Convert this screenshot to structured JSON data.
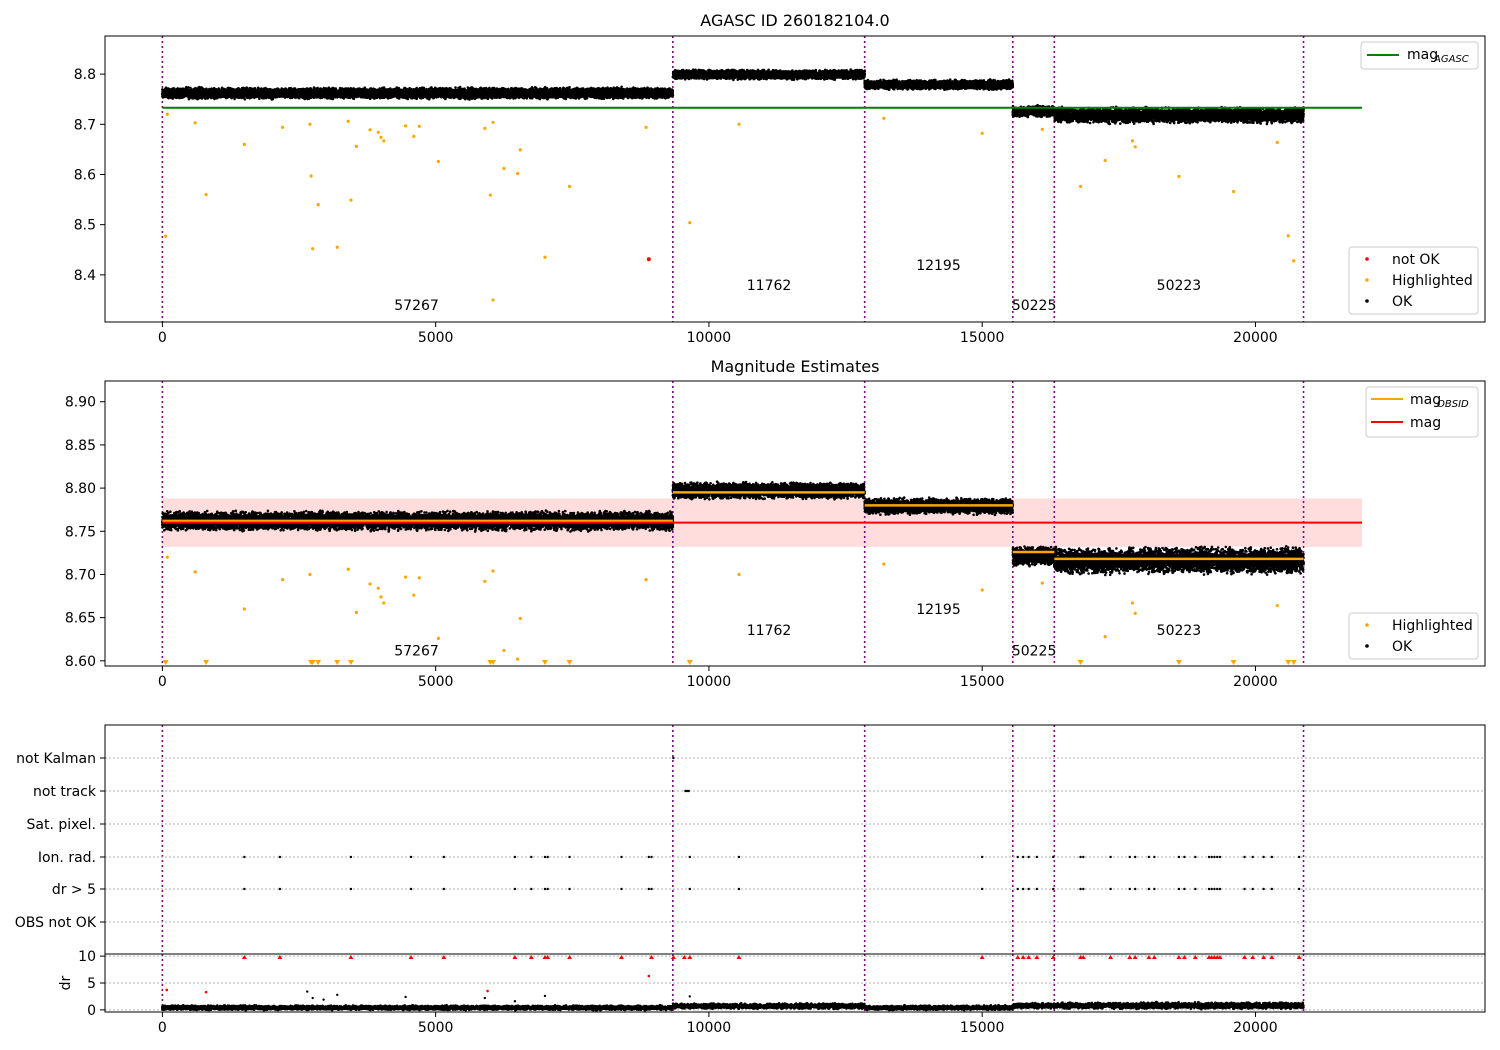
{
  "chart_data": [
    {
      "id": "top",
      "type": "scatter",
      "title": "AGASC ID 260182104.0",
      "xlim": [
        -1050,
        24200
      ],
      "ylim": [
        8.306,
        8.876
      ],
      "xticks": [
        0,
        5000,
        10000,
        15000,
        20000
      ],
      "xtick_labels": [
        "0",
        "5000",
        "10000",
        "15000",
        "20000"
      ],
      "yticks": [
        8.4,
        8.5,
        8.6,
        8.7,
        8.8
      ],
      "ytick_labels": [
        "8.4",
        "8.5",
        "8.6",
        "8.7",
        "8.8"
      ],
      "vlines": [
        0,
        9340,
        12850,
        15560,
        16320,
        20880
      ],
      "obsids": [
        {
          "label": "57267",
          "x": 4650,
          "y": 8.33
        },
        {
          "label": "11762",
          "x": 11100,
          "y": 8.37
        },
        {
          "label": "12195",
          "x": 14200,
          "y": 8.41
        },
        {
          "label": "50225",
          "x": 15950,
          "y": 8.33
        },
        {
          "label": "50223",
          "x": 18600,
          "y": 8.37
        }
      ],
      "hline": {
        "name": "mag_AGASC",
        "y": 8.733,
        "xrange": [
          0,
          21950
        ],
        "color": "#008000"
      },
      "bands": [
        {
          "x": [
            0,
            9340
          ],
          "center": 8.762,
          "spread": 0.013
        },
        {
          "x": [
            9340,
            12850
          ],
          "center": 8.799,
          "spread": 0.011
        },
        {
          "x": [
            12850,
            15560
          ],
          "center": 8.779,
          "spread": 0.011
        },
        {
          "x": [
            15560,
            16320
          ],
          "center": 8.726,
          "spread": 0.013
        },
        {
          "x": [
            16320,
            20880
          ],
          "center": 8.718,
          "spread": 0.018
        }
      ],
      "highlighted": [
        [
          60,
          8.477
        ],
        [
          90,
          8.72
        ],
        [
          600,
          8.703
        ],
        [
          800,
          8.56
        ],
        [
          1500,
          8.66
        ],
        [
          2200,
          8.694
        ],
        [
          2700,
          8.7
        ],
        [
          2720,
          8.597
        ],
        [
          2750,
          8.452
        ],
        [
          2850,
          8.54
        ],
        [
          3200,
          8.455
        ],
        [
          3400,
          8.706
        ],
        [
          3450,
          8.549
        ],
        [
          3550,
          8.656
        ],
        [
          3800,
          8.689
        ],
        [
          3950,
          8.684
        ],
        [
          4000,
          8.674
        ],
        [
          4050,
          8.667
        ],
        [
          4450,
          8.697
        ],
        [
          4600,
          8.676
        ],
        [
          4700,
          8.696
        ],
        [
          5050,
          8.626
        ],
        [
          5900,
          8.692
        ],
        [
          6000,
          8.559
        ],
        [
          6050,
          8.704
        ],
        [
          6050,
          8.35
        ],
        [
          6250,
          8.612
        ],
        [
          6500,
          8.602
        ],
        [
          6550,
          8.649
        ],
        [
          7000,
          8.435
        ],
        [
          7450,
          8.576
        ],
        [
          8850,
          8.694
        ],
        [
          9650,
          8.504
        ],
        [
          10550,
          8.7
        ],
        [
          13200,
          8.712
        ],
        [
          15000,
          8.682
        ],
        [
          16100,
          8.69
        ],
        [
          16800,
          8.576
        ],
        [
          17250,
          8.628
        ],
        [
          17750,
          8.667
        ],
        [
          17800,
          8.655
        ],
        [
          18600,
          8.596
        ],
        [
          19600,
          8.566
        ],
        [
          20400,
          8.664
        ],
        [
          20600,
          8.478
        ],
        [
          20700,
          8.428
        ]
      ],
      "not_ok": [
        [
          8900,
          8.431
        ]
      ],
      "legend_line": "mag",
      "legend_line_sub": "AGASC",
      "legend_points": [
        "not OK",
        "Highlighted",
        "OK"
      ]
    },
    {
      "id": "mid",
      "type": "scatter",
      "title": "Magnitude Estimates",
      "xlim": [
        -1050,
        24200
      ],
      "ylim": [
        8.594,
        8.924
      ],
      "xticks": [
        0,
        5000,
        10000,
        15000,
        20000
      ],
      "xtick_labels": [
        "0",
        "5000",
        "10000",
        "15000",
        "20000"
      ],
      "yticks": [
        8.6,
        8.65,
        8.7,
        8.75,
        8.8,
        8.85,
        8.9
      ],
      "ytick_labels": [
        "8.60",
        "8.65",
        "8.70",
        "8.75",
        "8.80",
        "8.85",
        "8.90"
      ],
      "vlines": [
        0,
        9340,
        12850,
        15560,
        16320,
        20880
      ],
      "obsids": [
        {
          "label": "57267",
          "x": 4650,
          "y": 8.606
        },
        {
          "label": "11762",
          "x": 11100,
          "y": 8.63
        },
        {
          "label": "12195",
          "x": 14200,
          "y": 8.654
        },
        {
          "label": "50225",
          "x": 15950,
          "y": 8.606
        },
        {
          "label": "50223",
          "x": 18600,
          "y": 8.63
        }
      ],
      "mag": {
        "y": 8.76,
        "band": [
          8.732,
          8.788
        ],
        "xrange": [
          0,
          21950
        ]
      },
      "mag_obsid": [
        {
          "x": [
            0,
            9340
          ],
          "y": 8.762
        },
        {
          "x": [
            9340,
            12850
          ],
          "y": 8.795
        },
        {
          "x": [
            12850,
            15560
          ],
          "y": 8.78
        },
        {
          "x": [
            15560,
            16320
          ],
          "y": 8.726
        },
        {
          "x": [
            16320,
            20880
          ],
          "y": 8.718
        }
      ],
      "bands": [
        {
          "x": [
            0,
            9340
          ],
          "center": 8.762,
          "spread": 0.013
        },
        {
          "x": [
            9340,
            12850
          ],
          "center": 8.797,
          "spread": 0.011
        },
        {
          "x": [
            12850,
            15560
          ],
          "center": 8.779,
          "spread": 0.011
        },
        {
          "x": [
            15560,
            16320
          ],
          "center": 8.721,
          "spread": 0.013
        },
        {
          "x": [
            16320,
            20880
          ],
          "center": 8.716,
          "spread": 0.018
        }
      ],
      "highlighted": [
        [
          90,
          8.72
        ],
        [
          600,
          8.703
        ],
        [
          1500,
          8.66
        ],
        [
          2200,
          8.694
        ],
        [
          2700,
          8.7
        ],
        [
          3400,
          8.706
        ],
        [
          3550,
          8.656
        ],
        [
          3800,
          8.689
        ],
        [
          3950,
          8.684
        ],
        [
          4000,
          8.674
        ],
        [
          4050,
          8.667
        ],
        [
          4450,
          8.697
        ],
        [
          4600,
          8.676
        ],
        [
          4700,
          8.696
        ],
        [
          5050,
          8.626
        ],
        [
          5900,
          8.692
        ],
        [
          6050,
          8.704
        ],
        [
          6250,
          8.612
        ],
        [
          6500,
          8.602
        ],
        [
          6550,
          8.649
        ],
        [
          8850,
          8.694
        ],
        [
          10550,
          8.7
        ],
        [
          13200,
          8.712
        ],
        [
          15000,
          8.682
        ],
        [
          16100,
          8.69
        ],
        [
          17250,
          8.628
        ],
        [
          17750,
          8.667
        ],
        [
          17800,
          8.655
        ],
        [
          20400,
          8.664
        ]
      ],
      "clipped_x": [
        60,
        800,
        2720,
        2750,
        2850,
        3200,
        3450,
        6000,
        6050,
        7000,
        7450,
        9650,
        16800,
        18600,
        19600,
        20600,
        20700
      ],
      "legend_lines": [
        {
          "label": "mag",
          "sub": "OBSID",
          "color": "#ffa500"
        },
        {
          "label": "mag",
          "sub": "",
          "color": "#ff0000"
        }
      ],
      "legend_points": [
        "Highlighted",
        "OK"
      ]
    },
    {
      "id": "flags",
      "type": "scatter",
      "xlim": [
        -1050,
        24200
      ],
      "categories": [
        "not Kalman",
        "not track",
        "Sat. pixel.",
        "Ion. rad.",
        "dr > 5",
        "OBS not OK"
      ],
      "vlines": [
        0,
        9340,
        12850,
        15560,
        16320,
        20880
      ],
      "events_x": [
        1500,
        2150,
        3450,
        4550,
        5150,
        6450,
        6750,
        7000,
        7050,
        7450,
        8400,
        8900,
        8950,
        9650,
        10550,
        15000,
        15650,
        15750,
        15850,
        16000,
        16300,
        16800,
        16850,
        17350,
        17700,
        17800,
        18050,
        18150,
        18600,
        18700,
        18900,
        19150,
        19200,
        19250,
        19300,
        19350,
        19800,
        19950,
        20150,
        20300,
        20800
      ],
      "not_track_x": [
        9570,
        9600,
        9630
      ],
      "not_kalman_x": [
        9350
      ]
    },
    {
      "id": "dr",
      "type": "scatter",
      "ylabel": "dr",
      "xlim": [
        -1050,
        24200
      ],
      "ylim": [
        -0.4,
        10.4
      ],
      "yticks": [
        0,
        5,
        10
      ],
      "ytick_labels": [
        "0",
        "5",
        "10"
      ],
      "xticks": [
        0,
        5000,
        10000,
        15000,
        20000
      ],
      "xtick_labels": [
        "0",
        "5000",
        "10000",
        "15000",
        "20000"
      ],
      "vlines": [
        0,
        9340,
        12850,
        15560,
        16320,
        20880
      ],
      "clipped_x": [
        1500,
        2150,
        3450,
        4550,
        5150,
        6450,
        6750,
        7000,
        7050,
        7450,
        8400,
        8950,
        9350,
        9550,
        9650,
        10550,
        15000,
        15650,
        15750,
        15850,
        16000,
        16300,
        16800,
        16850,
        17350,
        17700,
        17800,
        18050,
        18150,
        18600,
        18700,
        18900,
        19150,
        19200,
        19250,
        19300,
        19350,
        19800,
        19950,
        20150,
        20300,
        20800
      ],
      "red_points": [
        [
          80,
          3.7
        ],
        [
          800,
          3.3
        ],
        [
          8900,
          6.3
        ],
        [
          5950,
          3.5
        ]
      ],
      "outliers": [
        [
          2650,
          3.4
        ],
        [
          2750,
          2.2
        ],
        [
          2950,
          1.9
        ],
        [
          3200,
          2.8
        ],
        [
          4450,
          2.4
        ],
        [
          5900,
          2.2
        ],
        [
          6450,
          1.6
        ],
        [
          7000,
          2.6
        ],
        [
          9650,
          2.5
        ]
      ],
      "bands": [
        {
          "x": [
            0,
            9340
          ],
          "center": 0.4,
          "spread": 0.5
        },
        {
          "x": [
            9340,
            12850
          ],
          "center": 0.7,
          "spread": 0.6
        },
        {
          "x": [
            12850,
            15560
          ],
          "center": 0.4,
          "spread": 0.5
        },
        {
          "x": [
            15560,
            16320
          ],
          "center": 0.8,
          "spread": 0.6
        },
        {
          "x": [
            16320,
            20880
          ],
          "center": 0.8,
          "spread": 0.7
        }
      ]
    }
  ],
  "colors": {
    "ok": "#000000",
    "highlighted": "#ffa500",
    "not_ok": "#ff0000",
    "vline": "#8b008b",
    "agasc_line": "#008000",
    "mag_line": "#ff0000",
    "mag_band": "#ffdddd",
    "obsid_line": "#ffa500"
  }
}
